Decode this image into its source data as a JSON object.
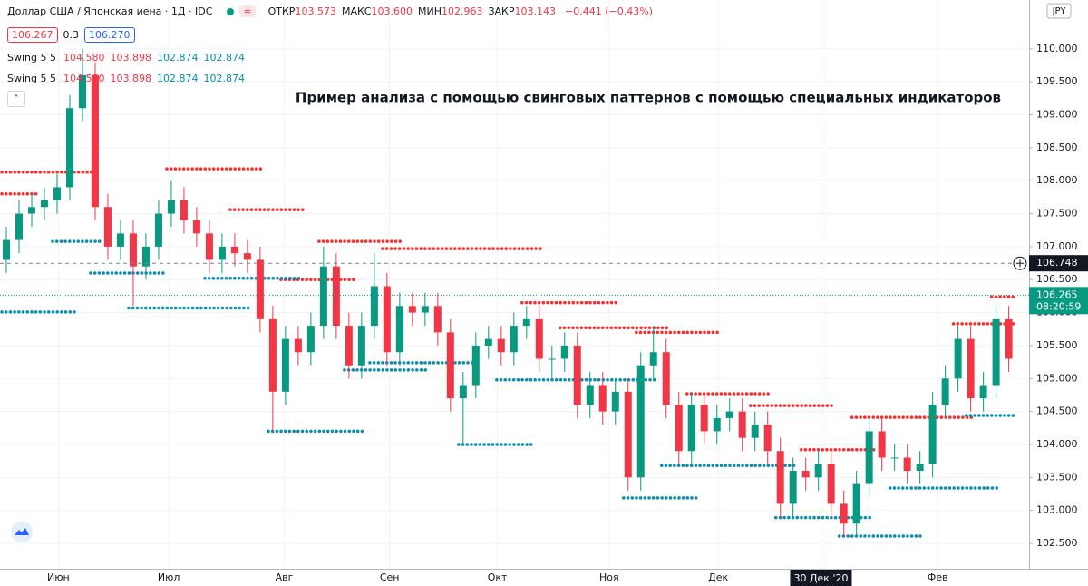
{
  "header": {
    "title": "Доллар США / Японская иена · 1Д · IDC",
    "ohlc": [
      {
        "label": "ОТКР",
        "value": "103.573"
      },
      {
        "label": "МАКС",
        "value": "103.600"
      },
      {
        "label": "МИН",
        "value": "102.963"
      },
      {
        "label": "ЗАКР",
        "value": "103.143"
      }
    ],
    "change": "−0.441 (−0.43%)",
    "bid": "106.267",
    "spread": "0.3",
    "ask": "106.270"
  },
  "indicators": [
    {
      "name": "Swing 5 5",
      "values": [
        "104.580",
        "103.898",
        "102.874",
        "102.874"
      ]
    },
    {
      "name": "Swing 5 5",
      "values": [
        "104.580",
        "103.898",
        "102.874",
        "102.874"
      ]
    }
  ],
  "chart_data": {
    "type": "candlestick",
    "annotation": "Пример анализа с помощью свинговых паттернов с помощью специальных индикаторов",
    "currency": "JPY",
    "up_color": "#089981",
    "down_color": "#f23645",
    "swing_high_color": "#ff2a2a",
    "swing_low_color": "#0a8db0",
    "grid": true,
    "xlim": [
      -0.5,
      80.6
    ],
    "ylim": [
      102.115,
      110.74
    ],
    "xticks": [
      {
        "value": 4.1,
        "label": "Июн"
      },
      {
        "value": 12.8,
        "label": "Июл"
      },
      {
        "value": 21.9,
        "label": "Авг"
      },
      {
        "value": 30.2,
        "label": "Сен"
      },
      {
        "value": 38.7,
        "label": "Окт"
      },
      {
        "value": 47.5,
        "label": "Ноя"
      },
      {
        "value": 56.1,
        "label": "Дек"
      },
      {
        "value": 73.4,
        "label": "Фев"
      }
    ],
    "yticks": [
      {
        "value": 102.5,
        "label": "102.500"
      },
      {
        "value": 103,
        "label": "103.000"
      },
      {
        "value": 103.5,
        "label": "103.500"
      },
      {
        "value": 104,
        "label": "104.000"
      },
      {
        "value": 104.5,
        "label": "104.500"
      },
      {
        "value": 105,
        "label": "105.000"
      },
      {
        "value": 105.5,
        "label": "105.500"
      },
      {
        "value": 106,
        "label": "106.000"
      },
      {
        "value": 106.5,
        "label": "106.500"
      },
      {
        "value": 107,
        "label": "107.000"
      },
      {
        "value": 107.5,
        "label": "107.500"
      },
      {
        "value": 108,
        "label": "108.000"
      },
      {
        "value": 108.5,
        "label": "108.500"
      },
      {
        "value": 109,
        "label": "109.000"
      },
      {
        "value": 109.5,
        "label": "109.500"
      },
      {
        "value": 110,
        "label": "110.000"
      }
    ],
    "open": [
      106.8,
      107.1,
      107.5,
      107.6,
      107.7,
      107.9,
      109.1,
      109.6,
      107.6,
      107.0,
      107.2,
      106.7,
      107.0,
      107.5,
      107.7,
      107.4,
      107.2,
      106.8,
      107.0,
      106.9,
      106.8,
      105.9,
      104.8,
      105.6,
      105.4,
      105.8,
      106.7,
      105.8,
      105.2,
      105.8,
      106.4,
      105.4,
      106.1,
      106.0,
      106.1,
      105.7,
      104.7,
      104.9,
      105.5,
      105.6,
      105.4,
      105.8,
      105.9,
      105.3,
      105.3,
      105.5,
      104.6,
      104.9,
      104.5,
      104.8,
      103.5,
      105.2,
      105.4,
      104.6,
      103.9,
      104.6,
      104.2,
      104.4,
      104.5,
      104.1,
      104.3,
      103.9,
      103.1,
      103.6,
      103.5,
      103.7,
      103.1,
      102.8,
      103.4,
      104.2,
      103.8,
      103.8,
      103.6,
      103.7,
      104.6,
      105.0,
      105.6,
      104.7,
      104.9,
      105.9
    ],
    "high": [
      107.3,
      107.7,
      107.8,
      107.9,
      108.1,
      109.3,
      110.0,
      109.8,
      107.8,
      107.4,
      107.4,
      107.2,
      107.7,
      108.0,
      107.9,
      107.6,
      107.4,
      107.2,
      107.2,
      107.1,
      107.0,
      106.1,
      105.8,
      105.8,
      106.0,
      107.0,
      106.9,
      106.0,
      106.0,
      106.9,
      106.6,
      106.3,
      106.3,
      106.3,
      106.3,
      105.9,
      105.1,
      105.7,
      105.8,
      105.8,
      106.0,
      106.1,
      106.1,
      105.5,
      105.7,
      105.7,
      105.1,
      105.1,
      105.0,
      105.0,
      105.4,
      105.8,
      105.6,
      104.8,
      104.8,
      104.8,
      104.6,
      104.7,
      104.7,
      104.5,
      104.5,
      104.1,
      103.8,
      103.8,
      103.9,
      103.9,
      103.3,
      103.6,
      104.4,
      104.4,
      104.0,
      104.0,
      103.9,
      104.8,
      105.2,
      105.8,
      105.8,
      105.1,
      106.1,
      106.1
    ],
    "low": [
      106.6,
      106.9,
      107.3,
      107.4,
      107.5,
      107.7,
      108.9,
      107.4,
      106.8,
      106.8,
      106.1,
      106.5,
      106.8,
      107.3,
      107.2,
      107.0,
      106.6,
      106.6,
      106.7,
      106.6,
      105.7,
      104.2,
      104.6,
      105.2,
      105.2,
      105.6,
      105.6,
      105.0,
      105.0,
      105.6,
      105.2,
      105.2,
      105.8,
      105.8,
      105.5,
      104.5,
      104.0,
      104.7,
      105.3,
      105.2,
      105.2,
      105.6,
      105.1,
      105.0,
      105.1,
      104.4,
      104.4,
      104.3,
      104.3,
      103.3,
      103.3,
      105.0,
      104.4,
      103.7,
      103.7,
      104.0,
      104.0,
      104.2,
      103.9,
      103.9,
      103.7,
      102.9,
      102.9,
      103.3,
      103.3,
      102.9,
      102.6,
      102.6,
      103.2,
      103.6,
      103.6,
      103.4,
      103.4,
      103.5,
      104.4,
      104.8,
      104.5,
      104.5,
      104.7,
      105.1
    ],
    "close": [
      107.1,
      107.5,
      107.6,
      107.7,
      107.9,
      109.1,
      109.6,
      107.6,
      107.0,
      107.2,
      106.7,
      107.0,
      107.5,
      107.7,
      107.4,
      107.2,
      106.8,
      107.0,
      106.9,
      106.8,
      105.9,
      104.8,
      105.6,
      105.4,
      105.8,
      106.7,
      105.8,
      105.2,
      105.8,
      106.4,
      105.4,
      106.1,
      106.0,
      106.1,
      105.7,
      104.7,
      104.9,
      105.5,
      105.6,
      105.4,
      105.8,
      105.9,
      105.3,
      105.3,
      105.5,
      104.6,
      104.9,
      104.5,
      104.8,
      103.5,
      105.2,
      105.4,
      104.6,
      103.9,
      104.6,
      104.2,
      104.4,
      104.5,
      104.1,
      104.3,
      103.9,
      103.1,
      103.6,
      103.5,
      103.7,
      103.1,
      102.8,
      103.4,
      104.2,
      103.8,
      103.8,
      103.6,
      103.7,
      104.6,
      105.0,
      105.6,
      104.7,
      104.9,
      105.9,
      105.3
    ],
    "swing_highs": [
      {
        "start": 0,
        "end": 2,
        "value": 107.8
      },
      {
        "start": 0,
        "end": 7,
        "value": 108.13
      },
      {
        "start": 13,
        "end": 20,
        "value": 108.18
      },
      {
        "start": 18,
        "end": 23,
        "value": 107.56
      },
      {
        "start": 25,
        "end": 31,
        "value": 107.08
      },
      {
        "start": 30,
        "end": 42,
        "value": 106.97
      },
      {
        "start": 22,
        "end": 27,
        "value": 106.5
      },
      {
        "start": 41,
        "end": 48,
        "value": 106.15
      },
      {
        "start": 44,
        "end": 52,
        "value": 105.77
      },
      {
        "start": 50,
        "end": 56,
        "value": 105.7
      },
      {
        "start": 54,
        "end": 60,
        "value": 104.77
      },
      {
        "start": 59,
        "end": 65,
        "value": 104.59
      },
      {
        "start": 63,
        "end": 68,
        "value": 103.92
      },
      {
        "start": 67,
        "end": 76,
        "value": 104.41
      },
      {
        "start": 75,
        "end": 79,
        "value": 105.83
      },
      {
        "start": 78,
        "end": 79,
        "value": 106.24
      }
    ],
    "swing_lows": [
      {
        "start": 0,
        "end": 5,
        "value": 106.01
      },
      {
        "start": 4,
        "end": 7,
        "value": 107.08
      },
      {
        "start": 7,
        "end": 12,
        "value": 106.6
      },
      {
        "start": 10,
        "end": 19,
        "value": 106.07
      },
      {
        "start": 16,
        "end": 23,
        "value": 106.52
      },
      {
        "start": 21,
        "end": 28,
        "value": 104.2
      },
      {
        "start": 27,
        "end": 33,
        "value": 105.13
      },
      {
        "start": 29,
        "end": 37,
        "value": 105.24
      },
      {
        "start": 36,
        "end": 41,
        "value": 104.0
      },
      {
        "start": 39,
        "end": 51,
        "value": 104.98
      },
      {
        "start": 49,
        "end": 54,
        "value": 103.19
      },
      {
        "start": 52,
        "end": 62,
        "value": 103.68
      },
      {
        "start": 61,
        "end": 68,
        "value": 102.89
      },
      {
        "start": 66,
        "end": 72,
        "value": 102.61
      },
      {
        "start": 70,
        "end": 78,
        "value": 103.34
      },
      {
        "start": 76,
        "end": 79,
        "value": 104.44
      }
    ],
    "crosshair": {
      "x": {
        "value": 64.2,
        "label": "30 Дек '20"
      },
      "y": 106.748
    },
    "last_price": {
      "value": 106.265,
      "timer": "08:20:59"
    }
  }
}
